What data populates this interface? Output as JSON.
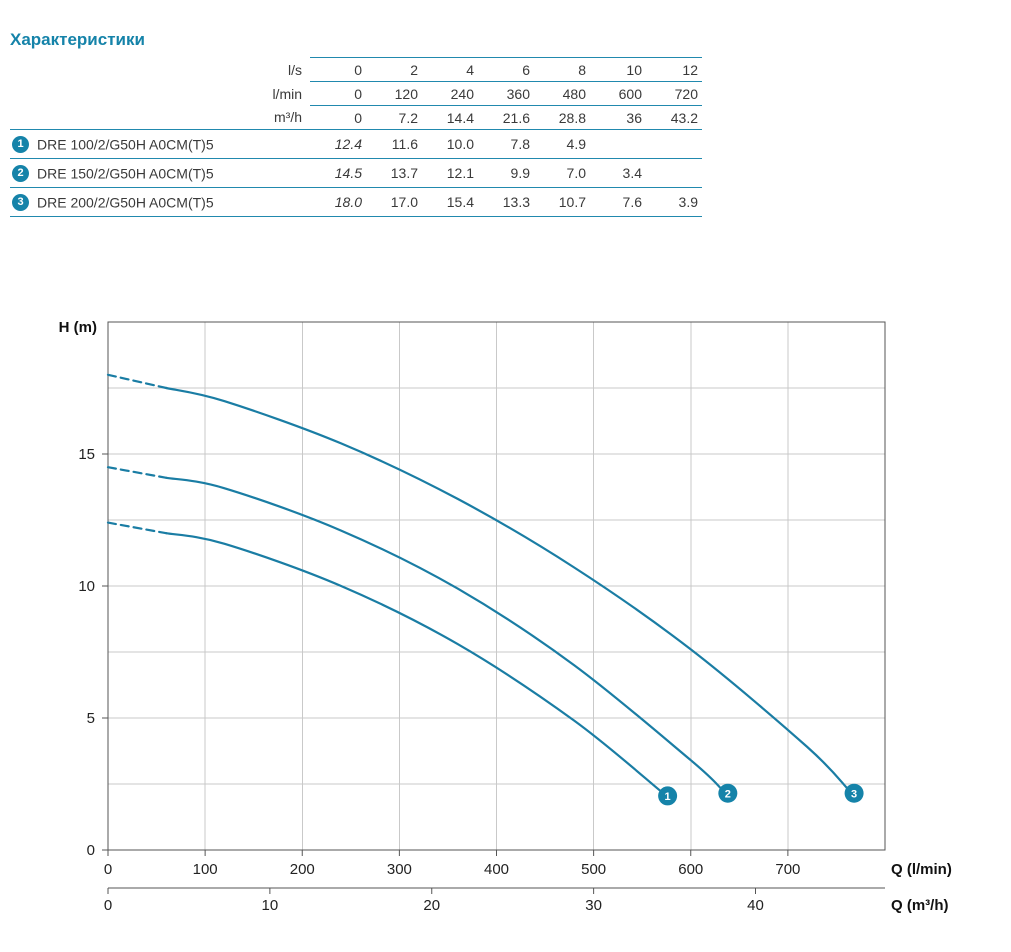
{
  "title": "Характеристики",
  "accent": "#1583a9",
  "table": {
    "unit_rows": [
      {
        "unit": "l/s",
        "values": [
          "0",
          "2",
          "4",
          "6",
          "8",
          "10",
          "12"
        ]
      },
      {
        "unit": "l/min",
        "values": [
          "0",
          "120",
          "240",
          "360",
          "480",
          "600",
          "720"
        ]
      },
      {
        "unit": "m³/h",
        "values": [
          "0",
          "7.2",
          "14.4",
          "21.6",
          "28.8",
          "36",
          "43.2"
        ]
      }
    ],
    "rows": [
      {
        "num": "1",
        "model": "DRE 100/2/G50H A0CM(T)5",
        "values": [
          "12.4",
          "11.6",
          "10.0",
          "7.8",
          "4.9",
          "",
          ""
        ]
      },
      {
        "num": "2",
        "model": "DRE 150/2/G50H A0CM(T)5",
        "values": [
          "14.5",
          "13.7",
          "12.1",
          "9.9",
          "7.0",
          "3.4",
          ""
        ]
      },
      {
        "num": "3",
        "model": "DRE 200/2/G50H A0CM(T)5",
        "values": [
          "18.0",
          "17.0",
          "15.4",
          "13.3",
          "10.7",
          "7.6",
          "3.9"
        ]
      }
    ]
  },
  "chart_data": {
    "type": "line",
    "ylabel": "H (m)",
    "xlabel_primary": "Q (l/min)",
    "xlabel_secondary": "Q (m³/h)",
    "xlim": [
      0,
      800
    ],
    "ylim": [
      0,
      20
    ],
    "x_ticks_lmin": [
      0,
      100,
      200,
      300,
      400,
      500,
      600,
      700
    ],
    "x_ticks_m3h": [
      0,
      10,
      20,
      30,
      40
    ],
    "y_ticks": [
      0,
      5,
      10,
      15
    ],
    "grid": {
      "x_step": 100,
      "y_step": 2.5
    },
    "dashed_until_lmin": 60,
    "curve_color": "#1a7da4",
    "grid_color": "#c9c9c9",
    "axis_color": "#555555",
    "series": [
      {
        "name": "1",
        "points_lmin_h": [
          [
            0,
            12.4
          ],
          [
            120,
            11.6
          ],
          [
            240,
            10.0
          ],
          [
            360,
            7.8
          ],
          [
            480,
            4.9
          ],
          [
            570,
            2.2
          ]
        ]
      },
      {
        "name": "2",
        "points_lmin_h": [
          [
            0,
            14.5
          ],
          [
            120,
            13.7
          ],
          [
            240,
            12.1
          ],
          [
            360,
            9.9
          ],
          [
            480,
            7.0
          ],
          [
            600,
            3.4
          ],
          [
            632,
            2.3
          ]
        ]
      },
      {
        "name": "3",
        "points_lmin_h": [
          [
            0,
            18.0
          ],
          [
            120,
            17.0
          ],
          [
            240,
            15.4
          ],
          [
            360,
            13.3
          ],
          [
            480,
            10.7
          ],
          [
            600,
            7.6
          ],
          [
            720,
            3.9
          ],
          [
            762,
            2.3
          ]
        ]
      }
    ]
  }
}
